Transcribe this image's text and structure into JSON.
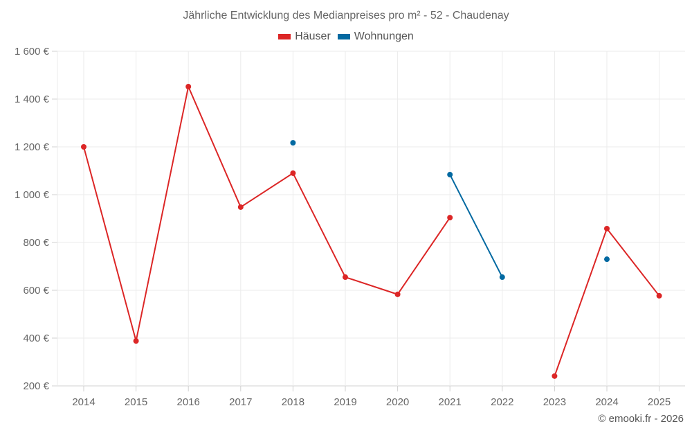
{
  "chart_data": {
    "type": "line",
    "title": "Jährliche Entwicklung des Medianpreises pro m² - 52 - Chaudenay",
    "xlabel": "",
    "ylabel": "",
    "categories": [
      "2014",
      "2015",
      "2016",
      "2017",
      "2018",
      "2019",
      "2020",
      "2021",
      "2022",
      "2023",
      "2024",
      "2025"
    ],
    "series": [
      {
        "name": "Häuser",
        "color": "#dc2626",
        "values": [
          1200,
          388,
          1452,
          948,
          1090,
          655,
          583,
          904,
          null,
          241,
          858,
          577
        ]
      },
      {
        "name": "Wohnungen",
        "color": "#0369a1",
        "values": [
          null,
          null,
          null,
          null,
          1217,
          null,
          null,
          1084,
          655,
          null,
          730,
          null
        ]
      }
    ],
    "ylim": [
      200,
      1600
    ],
    "yticks": [
      200,
      400,
      600,
      800,
      1000,
      1200,
      1400,
      1600
    ],
    "ytick_labels": [
      "200 €",
      "400 €",
      "600 €",
      "800 €",
      "1 000 €",
      "1 200 €",
      "1 400 €",
      "1 600 €"
    ],
    "grid": true,
    "legend_position": "top-center"
  },
  "header": {
    "title": "Jährliche Entwicklung des Medianpreises pro m² - 52 - Chaudenay"
  },
  "legend": [
    {
      "label": "Häuser",
      "color": "#dc2626"
    },
    {
      "label": "Wohnungen",
      "color": "#0369a1"
    }
  ],
  "footer": {
    "credit": "© emooki.fr - 2026"
  }
}
